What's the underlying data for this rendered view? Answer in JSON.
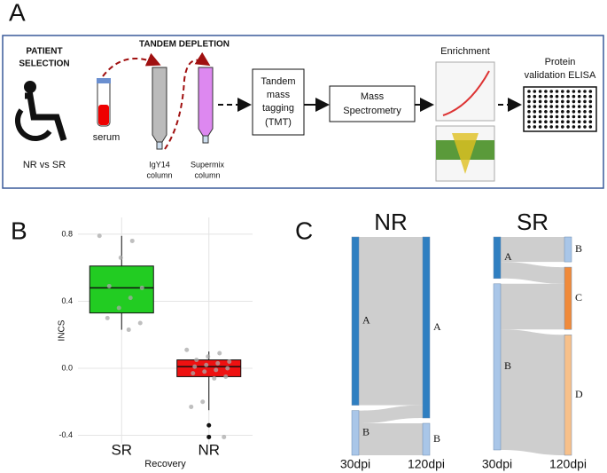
{
  "panel_labels": [
    "A",
    "B",
    "C"
  ],
  "diagram": {
    "patient_selection": [
      "PATIENT",
      "SELECTION"
    ],
    "tandem_depletion": "TANDEM DEPLETION",
    "serum": "serum",
    "groups": "NR vs SR",
    "igy14": [
      "IgY14",
      "column"
    ],
    "supermix": [
      "Supermix",
      "column"
    ],
    "tmt": [
      "Tandem",
      "mass",
      "tagging",
      "(TMT)"
    ],
    "mass_spec": [
      "Mass",
      "Spectrometry"
    ],
    "enrichment": "Enrichment",
    "elisa": [
      "Protein",
      "validation ELISA"
    ]
  },
  "chart_data": [
    {
      "type": "box",
      "xlabel": "Recovery",
      "ylabel": "INCS",
      "categories": [
        "SR",
        "NR"
      ],
      "ylim": [
        -0.45,
        0.9
      ],
      "yticks": [
        {
          "value": -0.4,
          "label": "-0.4"
        },
        {
          "value": 0,
          "label": "0.0"
        },
        0.4,
        0.8
      ],
      "grid": true,
      "boxes": [
        {
          "color": "#22cc22",
          "whisker_low": 0.23,
          "q1": 0.33,
          "median": 0.48,
          "q3": 0.61,
          "whisker_high": 0.79,
          "points": [
            0.79,
            0.76,
            0.66,
            0.49,
            0.48,
            0.42,
            0.36,
            0.3,
            0.27,
            0.23
          ],
          "outliers": []
        },
        {
          "color": "#ee1111",
          "whisker_low": -0.25,
          "q1": -0.05,
          "median": 0.01,
          "q3": 0.05,
          "whisker_high": 0.1,
          "points": [
            0.11,
            0.09,
            0.07,
            0.05,
            0.04,
            0.03,
            0.02,
            0.01,
            0.0,
            -0.01,
            -0.02,
            -0.03,
            -0.05,
            -0.06,
            -0.2,
            -0.23,
            -0.41
          ],
          "outliers": [
            -0.34,
            -0.41
          ]
        }
      ]
    },
    {
      "type": "sankey",
      "title": "NR",
      "left_label": "30dpi",
      "right_label": "120dpi",
      "link_color": "#bdbdbd",
      "nodes_left": [
        {
          "name": "A",
          "color": "#2f7fc1",
          "flows": [
            79,
            0
          ]
        },
        {
          "name": "B",
          "color": "#a9c6e8",
          "flows": [
            6,
            15
          ]
        }
      ],
      "nodes_right": [
        {
          "name": "A",
          "color": "#2f7fc1"
        },
        {
          "name": "B",
          "color": "#a9c6e8"
        }
      ]
    },
    {
      "type": "sankey",
      "title": "SR",
      "left_label": "30dpi",
      "right_label": "120dpi",
      "link_color": "#bdbdbd",
      "nodes_left": [
        {
          "name": "A",
          "color": "#2f7fc1",
          "flows": [
            12,
            8,
            0
          ]
        },
        {
          "name": "B",
          "color": "#a9c6e8",
          "flows": [
            0,
            22,
            58
          ]
        }
      ],
      "nodes_right": [
        {
          "name": "B",
          "color": "#a9c6e8"
        },
        {
          "name": "C",
          "color": "#f08a3a"
        },
        {
          "name": "D",
          "color": "#f7c08a"
        }
      ]
    }
  ]
}
